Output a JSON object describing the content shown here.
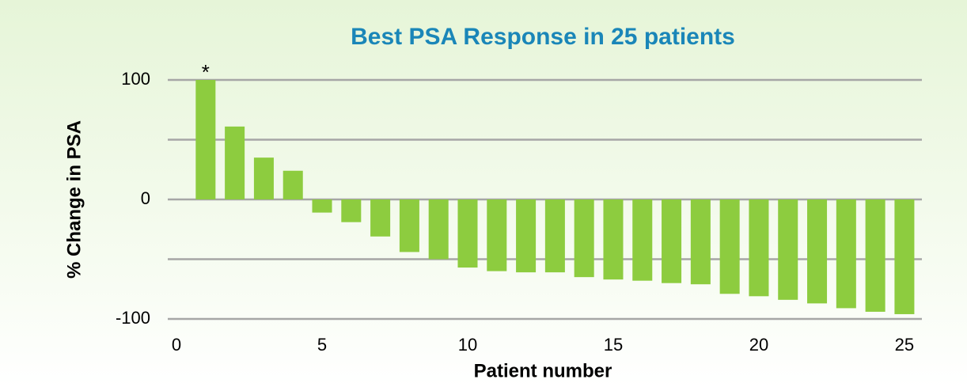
{
  "chart_data": {
    "type": "bar",
    "title": "Best PSA Response in 25 patients",
    "x_label": "Patient number",
    "y_label": "% Change in PSA",
    "x": [
      1,
      2,
      3,
      4,
      5,
      6,
      7,
      8,
      9,
      10,
      11,
      12,
      13,
      14,
      15,
      16,
      17,
      18,
      19,
      20,
      21,
      22,
      23,
      24,
      25
    ],
    "values": [
      100,
      61,
      35,
      24,
      -11,
      -19,
      -31,
      -44,
      -50,
      -57,
      -60,
      -61,
      -61,
      -65,
      -67,
      -68,
      -70,
      -71,
      -79,
      -81,
      -84,
      -87,
      -91,
      -94,
      -96
    ],
    "color": "#8dcc3f",
    "xlim": [
      -0.3,
      25.6
    ],
    "xticks": [
      0,
      5,
      10,
      15,
      20,
      25
    ],
    "ylim": [
      -100,
      100
    ],
    "yticks": [
      -100,
      0,
      100
    ],
    "minor_yticks": [
      -50,
      50
    ],
    "grid": true,
    "annotations": [
      {
        "text": "*",
        "x": 1,
        "y": 100
      }
    ]
  }
}
